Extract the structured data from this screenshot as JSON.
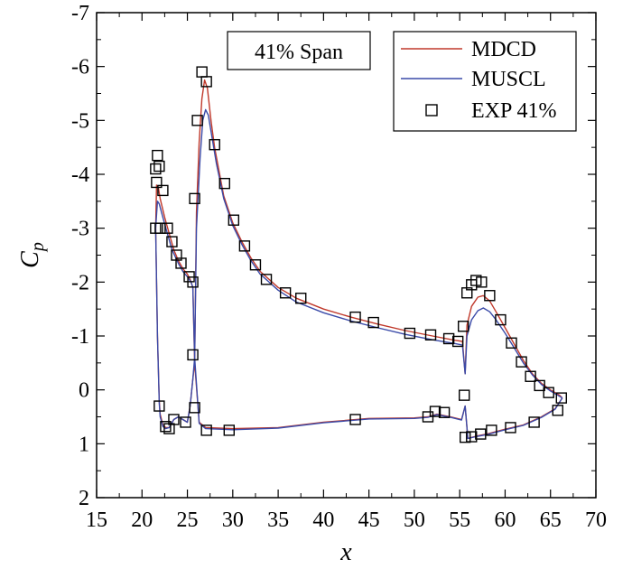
{
  "chart_data": {
    "type": "line",
    "title": "",
    "xlabel": "x",
    "ylabel": "C",
    "ylabel_sub": "p",
    "xlim": [
      15,
      70
    ],
    "ylim": [
      2,
      -7
    ],
    "y_inverted": true,
    "x_ticks": [
      15,
      20,
      25,
      30,
      35,
      40,
      45,
      50,
      55,
      60,
      65,
      70
    ],
    "x_tick_labels": [
      "15",
      "20",
      "25",
      "30",
      "35",
      "40",
      "45",
      "50",
      "55",
      "60",
      "65",
      "70"
    ],
    "y_ticks": [
      -7,
      -6,
      -5,
      -4,
      -3,
      -2,
      -1,
      0,
      1,
      2
    ],
    "y_tick_labels": [
      "-7",
      "-6",
      "-5",
      "-4",
      "-3",
      "-2",
      "-1",
      "0",
      "1",
      "2"
    ],
    "grid": false,
    "annotation": "41% Span",
    "legend": {
      "position": "top-right",
      "entries": [
        {
          "label": "MDCD",
          "kind": "line",
          "color": "#c0392b"
        },
        {
          "label": "MUSCL",
          "kind": "line",
          "color": "#3a4aa8"
        },
        {
          "label": "EXP 41%",
          "kind": "square"
        }
      ]
    },
    "series": [
      {
        "name": "MDCD",
        "kind": "line",
        "color": "#c0392b",
        "segments": [
          [
            [
              21.5,
              -3.0
            ],
            [
              21.6,
              -3.8
            ],
            [
              21.8,
              -3.75
            ],
            [
              22.0,
              -3.55
            ],
            [
              22.5,
              -3.2
            ],
            [
              23.0,
              -2.9
            ],
            [
              23.5,
              -2.6
            ],
            [
              24.0,
              -2.4
            ],
            [
              24.5,
              -2.25
            ],
            [
              25.0,
              -2.15
            ],
            [
              25.3,
              -2.05
            ],
            [
              25.6,
              -1.9
            ],
            [
              25.8,
              -0.5
            ],
            [
              26.0,
              -3.3
            ],
            [
              26.3,
              -4.6
            ],
            [
              26.6,
              -5.4
            ],
            [
              26.9,
              -5.75
            ],
            [
              27.2,
              -5.6
            ],
            [
              27.6,
              -5.0
            ],
            [
              28.0,
              -4.5
            ],
            [
              29.0,
              -3.6
            ],
            [
              30.0,
              -3.1
            ],
            [
              31.0,
              -2.75
            ],
            [
              32.0,
              -2.45
            ],
            [
              33.0,
              -2.2
            ],
            [
              35.0,
              -1.9
            ],
            [
              37.0,
              -1.7
            ],
            [
              40.0,
              -1.5
            ],
            [
              43.0,
              -1.35
            ],
            [
              46.0,
              -1.22
            ],
            [
              49.0,
              -1.1
            ],
            [
              52.0,
              -1.0
            ],
            [
              54.5,
              -0.92
            ],
            [
              55.3,
              -0.9
            ],
            [
              55.6,
              -0.3
            ],
            [
              55.8,
              -1.2
            ],
            [
              56.3,
              -1.55
            ],
            [
              57.0,
              -1.72
            ],
            [
              57.6,
              -1.75
            ],
            [
              58.3,
              -1.65
            ],
            [
              59.0,
              -1.45
            ],
            [
              60.0,
              -1.15
            ],
            [
              61.0,
              -0.85
            ],
            [
              62.0,
              -0.55
            ],
            [
              63.0,
              -0.3
            ],
            [
              64.0,
              -0.12
            ],
            [
              65.0,
              0.0
            ],
            [
              66.0,
              0.1
            ],
            [
              66.3,
              0.15
            ]
          ],
          [
            [
              21.5,
              -3.0
            ],
            [
              21.7,
              -1.0
            ],
            [
              21.9,
              0.2
            ],
            [
              22.0,
              0.45
            ],
            [
              22.3,
              0.65
            ],
            [
              22.6,
              0.7
            ],
            [
              23.0,
              0.7
            ],
            [
              23.5,
              0.55
            ],
            [
              24.0,
              0.5
            ],
            [
              24.5,
              0.55
            ],
            [
              25.0,
              0.6
            ],
            [
              25.3,
              0.3
            ],
            [
              25.6,
              -0.2
            ],
            [
              25.8,
              -0.5
            ],
            [
              26.3,
              0.6
            ],
            [
              27.0,
              0.7
            ],
            [
              30.0,
              0.72
            ],
            [
              35.0,
              0.7
            ],
            [
              40.0,
              0.6
            ],
            [
              45.0,
              0.53
            ],
            [
              50.0,
              0.52
            ],
            [
              51.5,
              0.5
            ],
            [
              52.5,
              0.45
            ],
            [
              54.0,
              0.5
            ],
            [
              55.2,
              0.55
            ],
            [
              55.6,
              0.3
            ],
            [
              55.9,
              0.9
            ],
            [
              57.0,
              0.85
            ],
            [
              58.0,
              0.82
            ],
            [
              60.0,
              0.73
            ],
            [
              62.0,
              0.65
            ],
            [
              64.0,
              0.5
            ],
            [
              65.5,
              0.35
            ],
            [
              66.3,
              0.15
            ]
          ]
        ]
      },
      {
        "name": "MUSCL",
        "kind": "line",
        "color": "#3a4aa8",
        "segments": [
          [
            [
              21.5,
              -3.0
            ],
            [
              21.7,
              -3.5
            ],
            [
              21.9,
              -3.45
            ],
            [
              22.3,
              -3.2
            ],
            [
              22.8,
              -2.9
            ],
            [
              23.3,
              -2.6
            ],
            [
              24.0,
              -2.35
            ],
            [
              24.5,
              -2.2
            ],
            [
              25.0,
              -2.1
            ],
            [
              25.4,
              -2.0
            ],
            [
              25.6,
              -1.9
            ],
            [
              25.8,
              -0.6
            ],
            [
              26.0,
              -3.0
            ],
            [
              26.4,
              -4.3
            ],
            [
              26.7,
              -5.0
            ],
            [
              27.0,
              -5.2
            ],
            [
              27.3,
              -5.1
            ],
            [
              27.7,
              -4.7
            ],
            [
              28.2,
              -4.2
            ],
            [
              29.0,
              -3.55
            ],
            [
              30.0,
              -3.05
            ],
            [
              31.0,
              -2.7
            ],
            [
              32.0,
              -2.4
            ],
            [
              33.0,
              -2.15
            ],
            [
              35.0,
              -1.85
            ],
            [
              37.0,
              -1.63
            ],
            [
              40.0,
              -1.43
            ],
            [
              43.0,
              -1.28
            ],
            [
              46.0,
              -1.15
            ],
            [
              49.0,
              -1.03
            ],
            [
              52.0,
              -0.93
            ],
            [
              54.5,
              -0.86
            ],
            [
              55.3,
              -0.83
            ],
            [
              55.6,
              -0.3
            ],
            [
              55.8,
              -1.0
            ],
            [
              56.3,
              -1.3
            ],
            [
              57.0,
              -1.47
            ],
            [
              57.6,
              -1.52
            ],
            [
              58.3,
              -1.45
            ],
            [
              59.0,
              -1.3
            ],
            [
              60.0,
              -1.05
            ],
            [
              61.0,
              -0.78
            ],
            [
              62.0,
              -0.5
            ],
            [
              63.0,
              -0.28
            ],
            [
              64.0,
              -0.1
            ],
            [
              65.0,
              0.02
            ],
            [
              66.0,
              0.12
            ],
            [
              66.3,
              0.15
            ]
          ],
          [
            [
              21.5,
              -3.0
            ],
            [
              21.7,
              -1.0
            ],
            [
              21.9,
              0.25
            ],
            [
              22.0,
              0.5
            ],
            [
              22.3,
              0.68
            ],
            [
              22.6,
              0.72
            ],
            [
              23.0,
              0.7
            ],
            [
              23.5,
              0.55
            ],
            [
              24.0,
              0.5
            ],
            [
              24.5,
              0.55
            ],
            [
              25.0,
              0.6
            ],
            [
              25.3,
              0.3
            ],
            [
              25.6,
              -0.2
            ],
            [
              25.8,
              -0.6
            ],
            [
              26.3,
              0.62
            ],
            [
              27.0,
              0.72
            ],
            [
              30.0,
              0.74
            ],
            [
              35.0,
              0.71
            ],
            [
              40.0,
              0.61
            ],
            [
              45.0,
              0.54
            ],
            [
              50.0,
              0.53
            ],
            [
              51.5,
              0.51
            ],
            [
              52.5,
              0.46
            ],
            [
              54.0,
              0.51
            ],
            [
              55.2,
              0.56
            ],
            [
              55.6,
              0.3
            ],
            [
              55.9,
              0.9
            ],
            [
              57.0,
              0.86
            ],
            [
              58.0,
              0.83
            ],
            [
              60.0,
              0.74
            ],
            [
              62.0,
              0.66
            ],
            [
              64.0,
              0.51
            ],
            [
              65.5,
              0.36
            ],
            [
              66.3,
              0.15
            ]
          ]
        ]
      },
      {
        "name": "EXP 41%",
        "kind": "marker",
        "points": [
          [
            21.5,
            -4.1
          ],
          [
            21.7,
            -4.35
          ],
          [
            21.9,
            -4.15
          ],
          [
            21.6,
            -3.85
          ],
          [
            21.5,
            -3.0
          ],
          [
            22.0,
            -3.0
          ],
          [
            22.3,
            -3.7
          ],
          [
            22.8,
            -3.0
          ],
          [
            23.3,
            -2.75
          ],
          [
            23.8,
            -2.5
          ],
          [
            24.3,
            -2.35
          ],
          [
            25.2,
            -2.1
          ],
          [
            25.6,
            -2.0
          ],
          [
            25.6,
            -0.65
          ],
          [
            25.8,
            -3.55
          ],
          [
            26.1,
            -5.0
          ],
          [
            26.6,
            -5.9
          ],
          [
            27.1,
            -5.72
          ],
          [
            28.0,
            -4.55
          ],
          [
            29.1,
            -3.83
          ],
          [
            30.1,
            -3.15
          ],
          [
            31.3,
            -2.67
          ],
          [
            32.5,
            -2.32
          ],
          [
            33.7,
            -2.05
          ],
          [
            35.8,
            -1.8
          ],
          [
            37.5,
            -1.7
          ],
          [
            43.5,
            -1.35
          ],
          [
            45.5,
            -1.25
          ],
          [
            49.5,
            -1.05
          ],
          [
            51.8,
            -1.02
          ],
          [
            53.8,
            -0.95
          ],
          [
            54.8,
            -0.9
          ],
          [
            55.4,
            -1.18
          ],
          [
            55.5,
            0.1
          ],
          [
            55.8,
            -1.8
          ],
          [
            56.3,
            -1.95
          ],
          [
            56.8,
            -2.03
          ],
          [
            57.4,
            -2.0
          ],
          [
            58.3,
            -1.75
          ],
          [
            59.5,
            -1.3
          ],
          [
            60.7,
            -0.87
          ],
          [
            61.8,
            -0.52
          ],
          [
            62.8,
            -0.25
          ],
          [
            63.8,
            -0.08
          ],
          [
            64.8,
            0.05
          ],
          [
            66.2,
            0.15
          ],
          [
            21.9,
            0.3
          ],
          [
            22.6,
            0.68
          ],
          [
            23.0,
            0.72
          ],
          [
            23.5,
            0.55
          ],
          [
            24.8,
            0.6
          ],
          [
            25.8,
            0.33
          ],
          [
            27.1,
            0.75
          ],
          [
            29.6,
            0.75
          ],
          [
            43.5,
            0.55
          ],
          [
            51.5,
            0.5
          ],
          [
            52.3,
            0.4
          ],
          [
            53.3,
            0.42
          ],
          [
            55.6,
            0.88
          ],
          [
            56.3,
            0.87
          ],
          [
            57.3,
            0.82
          ],
          [
            58.5,
            0.75
          ],
          [
            60.6,
            0.7
          ],
          [
            63.2,
            0.6
          ],
          [
            65.8,
            0.38
          ]
        ]
      }
    ]
  }
}
